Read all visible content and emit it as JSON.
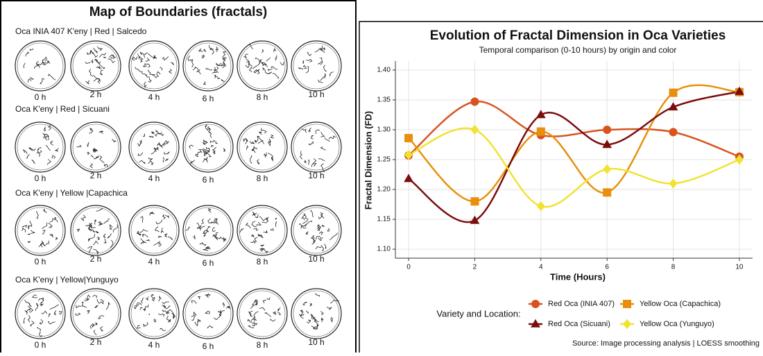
{
  "boundary_map": {
    "title": "Map of Boundaries (fractals)",
    "rows": [
      {
        "label": "Oca INIA 407 K'eny | Red | Salcedo",
        "times": [
          "0 h",
          "2 h",
          "4 h",
          "6 h",
          "8 h",
          "10 h"
        ]
      },
      {
        "label": "Oca K'eny | Red | Sicuani",
        "times": [
          "0 h",
          "2 h",
          "4 h",
          "6 h",
          "8 h",
          "10 h"
        ]
      },
      {
        "label": "Oca K'eny | Yellow |Capachica",
        "times": [
          "0 h",
          "2 h",
          "4 h",
          "6 h",
          "8 h",
          "10 h"
        ]
      },
      {
        "label": "Oca K'eny | Yellow|Yunguyo",
        "times": [
          "0 h",
          "2 h",
          "4 h",
          "6 h",
          "8 h",
          "10 h"
        ]
      }
    ]
  },
  "chart_data": {
    "type": "line",
    "title": "Evolution of Fractal Dimension in Oca Varieties",
    "subtitle": "Temporal comparison (0-10 hours) by origin and color",
    "x_label": "Time (Hours)",
    "y_label": "Fractal Dimension (FD)",
    "legend_title": "Variety and Location:",
    "caption": "Source: Image processing analysis | LOESS smoothing",
    "x": [
      0,
      2,
      4,
      6,
      8,
      10
    ],
    "xlim": [
      -0.4,
      10.4
    ],
    "xticks": [
      0,
      2,
      4,
      6,
      8,
      10
    ],
    "ylim": [
      1.085,
      1.415
    ],
    "yticks": [
      {
        "value": 1.1,
        "label": "1.10"
      },
      {
        "value": 1.15,
        "label": "1.15"
      },
      {
        "value": 1.2,
        "label": "1.20"
      },
      {
        "value": 1.25,
        "label": "1.25"
      },
      {
        "value": 1.3,
        "label": "1.30"
      },
      {
        "value": 1.35,
        "label": "1.35"
      },
      {
        "value": 1.4,
        "label": "1.40"
      }
    ],
    "grid": true,
    "series": [
      {
        "name": "Red Oca (INIA 407)",
        "color": "#d9531e",
        "marker": "circle",
        "values": [
          1.257,
          1.347,
          1.291,
          1.3,
          1.296,
          1.255
        ]
      },
      {
        "name": "Yellow Oca (Capachica)",
        "color": "#e8900c",
        "marker": "square",
        "values": [
          1.286,
          1.18,
          1.297,
          1.195,
          1.362,
          1.363
        ]
      },
      {
        "name": "Red Oca (Sicuani)",
        "color": "#7b0d0d",
        "marker": "triangle",
        "values": [
          1.218,
          1.148,
          1.325,
          1.275,
          1.338,
          1.364
        ]
      },
      {
        "name": "Yellow Oca (Yunguyo)",
        "color": "#f2e233",
        "marker": "diamond",
        "values": [
          1.258,
          1.3,
          1.172,
          1.234,
          1.21,
          1.25
        ]
      }
    ]
  }
}
